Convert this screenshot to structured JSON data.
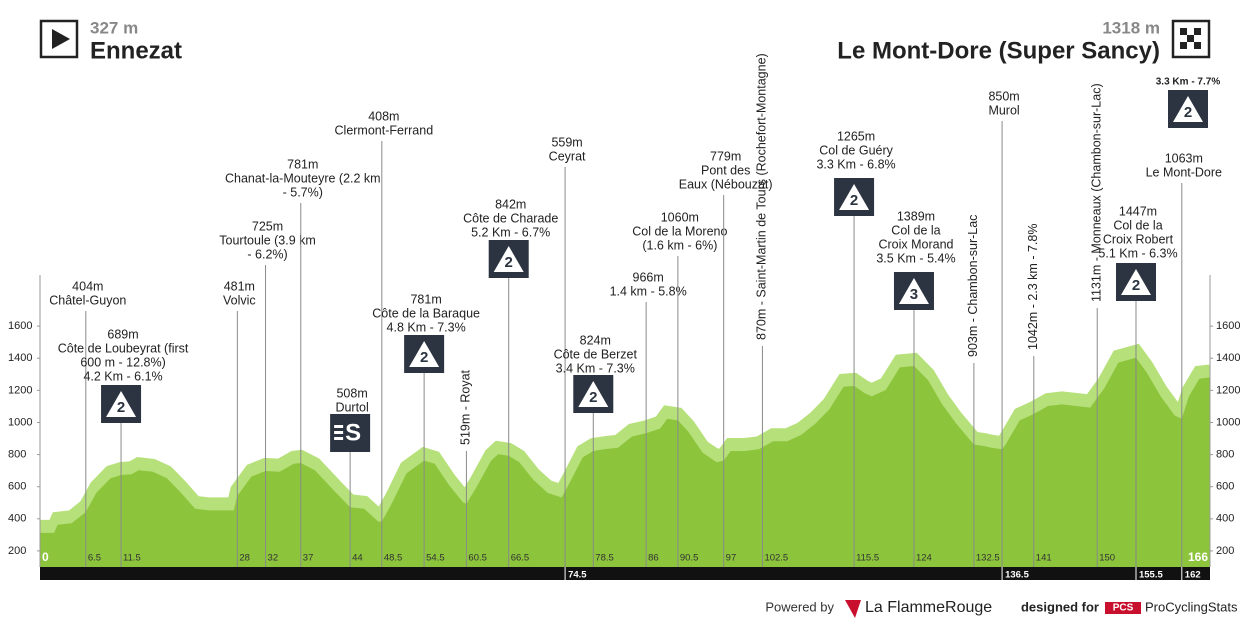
{
  "header": {
    "start_elevation": "327 m",
    "start": "Ennezat",
    "finish_elevation": "1318 m",
    "finish": "Le Mont-Dore (Super Sancy)"
  },
  "finish_climb": {
    "text": "3.3 Km - 7.7%",
    "badge": "2"
  },
  "footer": {
    "powered_by": "Powered by",
    "brand": "La FlammeRouge",
    "designed_for": "designed for",
    "pcs": "PCS",
    "site": "ProCyclingStats"
  },
  "chart_data": {
    "type": "area",
    "color": "#8cc43c",
    "edge_color": "#b6e07a",
    "x": [
      0,
      2,
      2.5,
      4.5,
      6.5,
      8,
      10,
      11.5,
      13,
      14,
      16,
      18,
      20,
      22,
      24,
      27.5,
      28,
      30,
      32,
      34,
      36,
      37,
      39,
      42,
      44,
      46,
      48,
      48.5,
      50,
      52,
      54.5,
      56,
      58,
      60,
      60.5,
      62,
      64,
      65,
      66.5,
      68,
      70,
      72,
      74,
      75,
      77,
      78.5,
      80,
      82,
      84,
      86,
      88,
      89,
      90.5,
      92,
      94,
      96,
      97,
      98,
      100,
      102,
      104,
      106,
      108,
      110,
      112,
      114,
      115.5,
      117,
      118,
      120,
      122,
      124,
      126,
      128,
      130,
      132.5,
      134,
      135,
      136.5,
      137,
      139,
      141,
      143,
      145,
      147,
      149,
      151,
      153,
      155.5,
      157,
      159,
      161,
      162,
      163,
      164.5,
      166
    ],
    "values": [
      350,
      350,
      400,
      410,
      480,
      600,
      690,
      710,
      715,
      740,
      730,
      690,
      600,
      500,
      490,
      490,
      580,
      700,
      735,
      730,
      780,
      785,
      740,
      600,
      510,
      500,
      420,
      420,
      540,
      720,
      800,
      780,
      650,
      540,
      530,
      640,
      800,
      840,
      830,
      790,
      680,
      600,
      570,
      650,
      820,
      860,
      870,
      880,
      950,
      970,
      1000,
      1060,
      1050,
      980,
      850,
      790,
      800,
      860,
      860,
      870,
      920,
      920,
      960,
      1030,
      1120,
      1260,
      1265,
      1220,
      1200,
      1240,
      1380,
      1389,
      1300,
      1150,
      1030,
      900,
      890,
      880,
      870,
      900,
      1050,
      1090,
      1140,
      1150,
      1140,
      1130,
      1250,
      1410,
      1440,
      1350,
      1200,
      1080,
      1060,
      1200,
      1310,
      1318
    ],
    "xlim": [
      0,
      166
    ],
    "ylim": [
      100,
      1800
    ],
    "yticks": [
      200,
      400,
      600,
      800,
      1000,
      1200,
      1400,
      1600
    ],
    "xticks": [
      0,
      6.5,
      11.5,
      28,
      32,
      37,
      44,
      48.5,
      54.5,
      60.5,
      66.5,
      78.5,
      86,
      90.5,
      97,
      102.5,
      115.5,
      124,
      132.5,
      141,
      150,
      166
    ],
    "bar_ticks": [
      74.5,
      136.5,
      155.5,
      162
    ],
    "annotations": [
      {
        "x": 6.5,
        "lines": [
          "404m",
          "Châtel-Guyon"
        ]
      },
      {
        "x": 11.5,
        "lines": [
          "689m",
          "Côte de Loubeyrat (first",
          "600 m - 12.8%)",
          "4.2 Km - 6.1%"
        ],
        "badge": "2"
      },
      {
        "x": 28,
        "lines": [
          "481m",
          "Volvic"
        ]
      },
      {
        "x": 32,
        "lines": [
          "725m",
          "Tourtoule (3.9 km",
          "- 6.2%)"
        ]
      },
      {
        "x": 37,
        "lines": [
          "781m",
          "Chanat-la-Mouteyre (2.2 km",
          "- 5.7%)"
        ]
      },
      {
        "x": 44,
        "lines": [
          "508m",
          "Durtol"
        ],
        "badge": "S"
      },
      {
        "x": 48.5,
        "lines": [
          "408m",
          "Clermont-Ferrand"
        ]
      },
      {
        "x": 54.5,
        "lines": [
          "781m",
          "Côte de la Baraque",
          "4.8 Km - 7.3%"
        ],
        "badge": "2"
      },
      {
        "x": 60.5,
        "text": "519m - Royat"
      },
      {
        "x": 66.5,
        "lines": [
          "842m",
          "Côte de Charade",
          "5.2 Km - 6.7%"
        ],
        "badge": "2"
      },
      {
        "x": 74.5,
        "lines": [
          "559m",
          "Ceyrat"
        ]
      },
      {
        "x": 78.5,
        "lines": [
          "824m",
          "Côte de Berzet",
          "3.4 Km - 7.3%"
        ],
        "badge": "2"
      },
      {
        "x": 86,
        "lines": [
          "966m",
          "1.4 km - 5.8%"
        ]
      },
      {
        "x": 90.5,
        "lines": [
          "1060m",
          "Col de la Moreno",
          "(1.6 km - 6%)"
        ]
      },
      {
        "x": 97,
        "lines": [
          "779m",
          "Pont des",
          "Eaux (Nébouzat)"
        ]
      },
      {
        "x": 102.5,
        "text": "870m - Saint-Martin de Tours (Rochefort-Montagne)"
      },
      {
        "x": 115.5,
        "lines": [
          "1265m",
          "Col de Guéry",
          "3.3 Km - 6.8%"
        ],
        "badge": "2"
      },
      {
        "x": 124,
        "lines": [
          "1389m",
          "Col de la",
          "Croix Morand",
          "3.5 Km - 5.4%"
        ],
        "badge": "3"
      },
      {
        "x": 132.5,
        "text": "903m - Chambon-sur-Lac"
      },
      {
        "x": 136.5,
        "lines": [
          "850m",
          "Murol"
        ]
      },
      {
        "x": 141,
        "text": "1042m - 2.3 km - 7.8%"
      },
      {
        "x": 150,
        "text": "1131m - Monneaux (Chambon-sur-Lac)"
      },
      {
        "x": 155.5,
        "lines": [
          "1447m",
          "Col de la",
          "Croix Robert",
          "5.1 Km - 6.3%"
        ],
        "badge": "2"
      },
      {
        "x": 162,
        "lines": [
          "1063m",
          "Le Mont-Dore"
        ]
      }
    ]
  }
}
